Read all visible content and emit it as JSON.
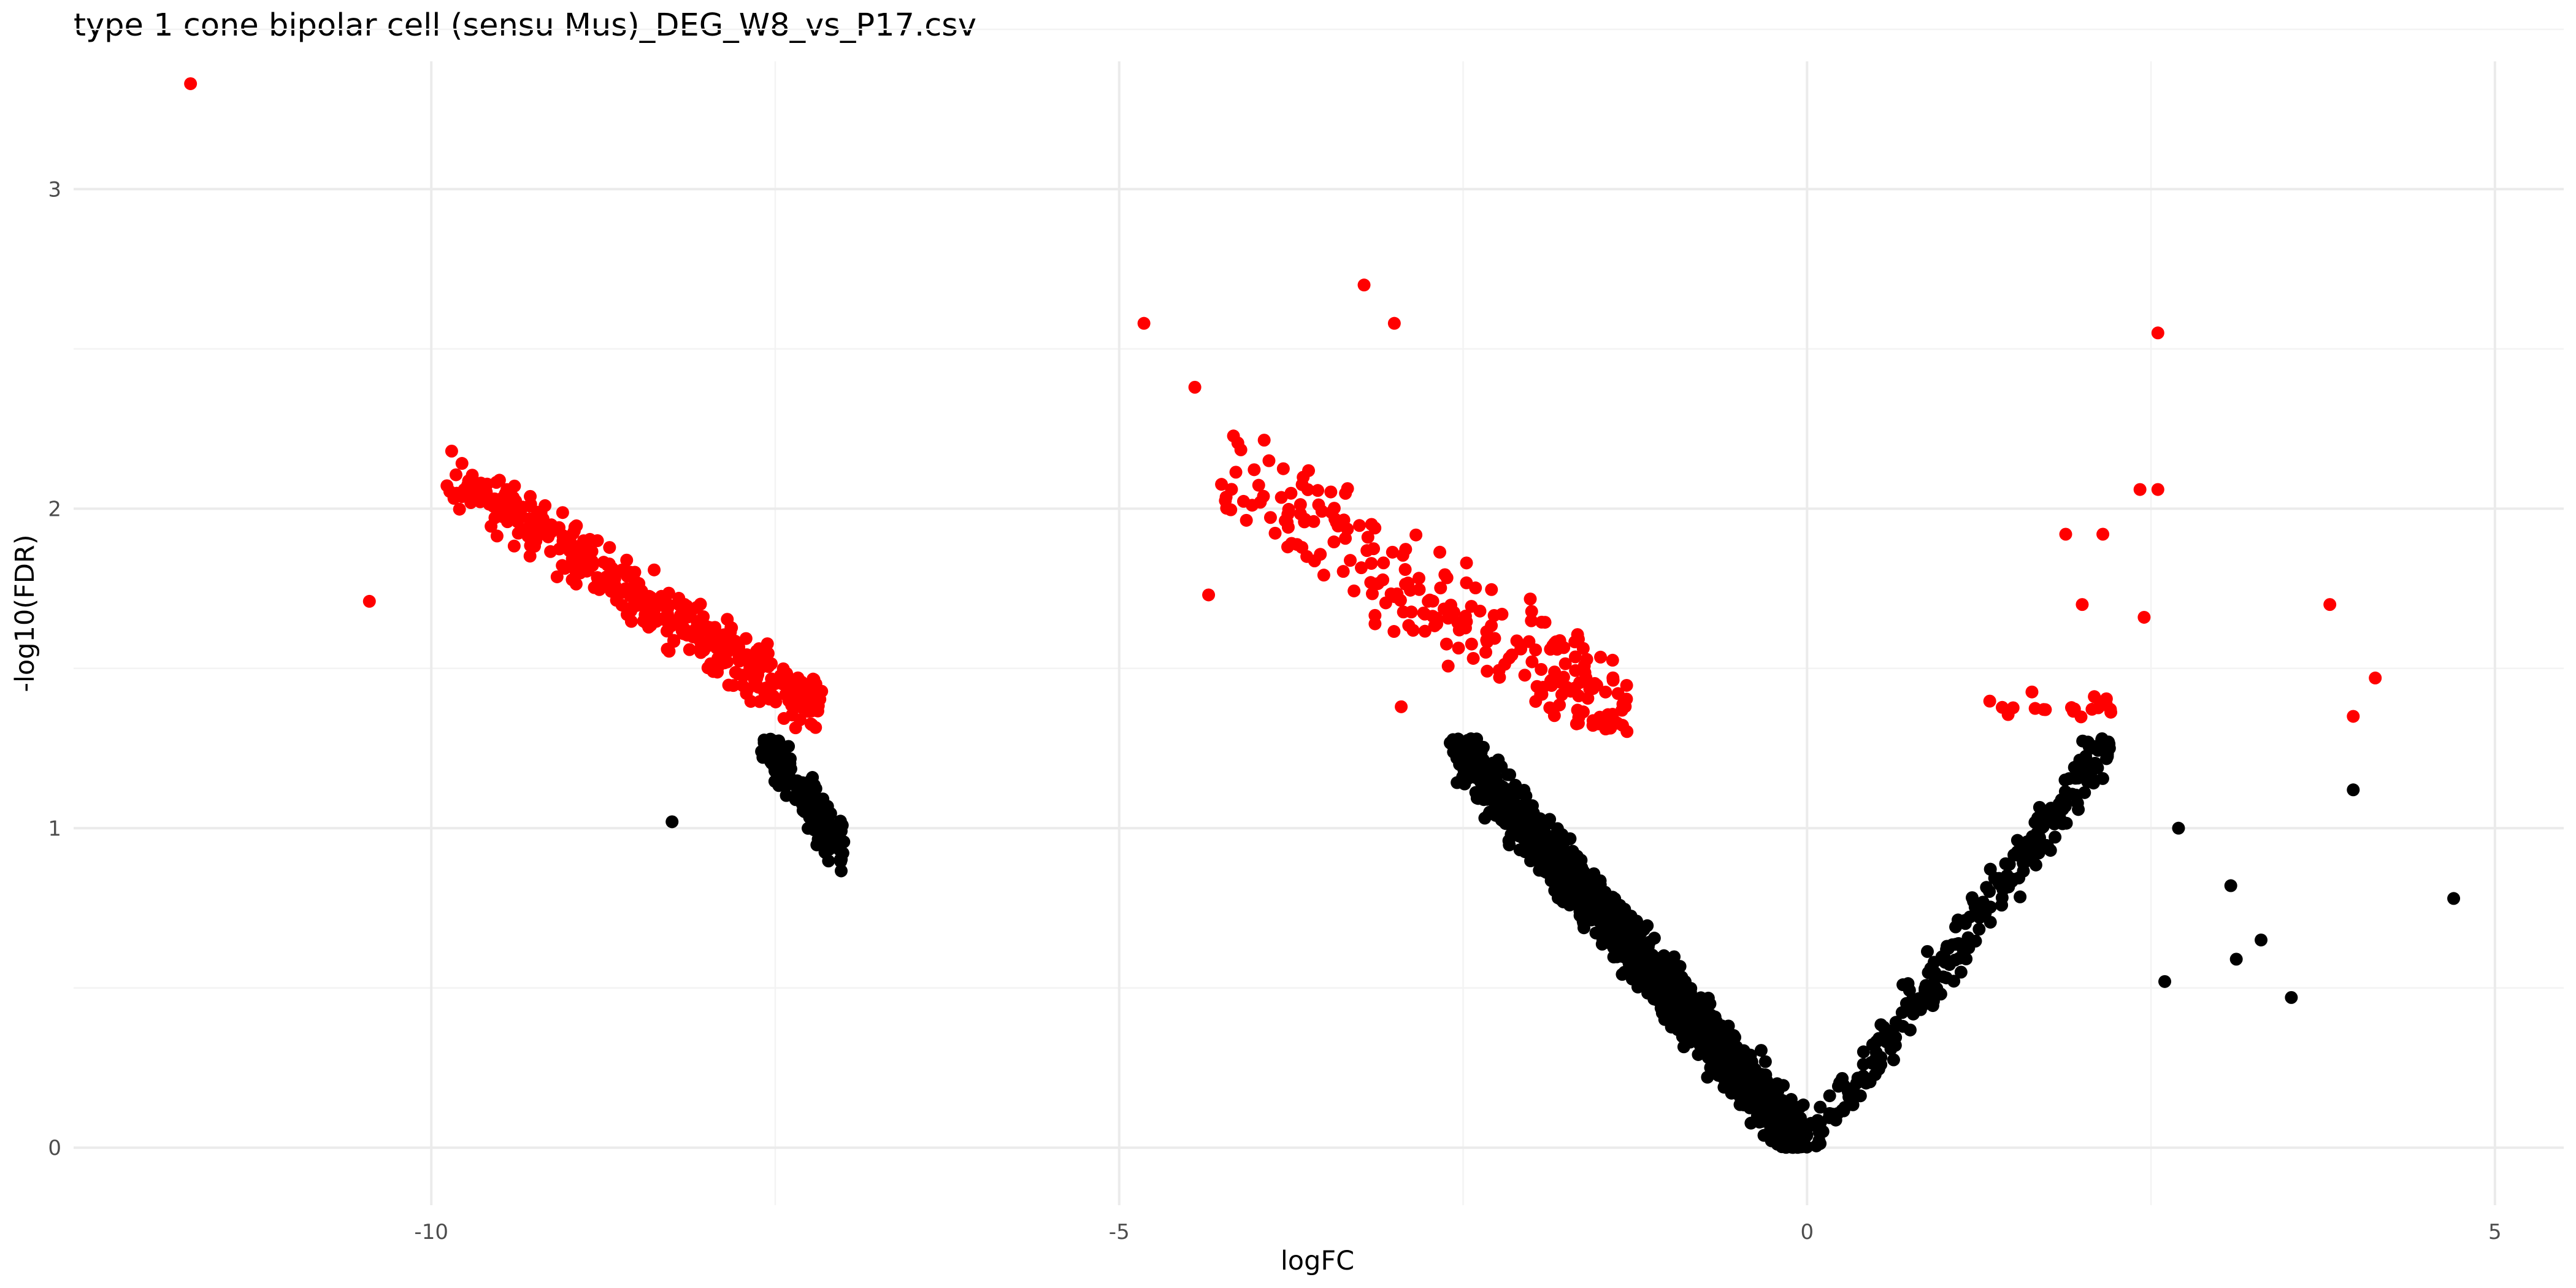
{
  "chart_data": {
    "type": "scatter",
    "title": "type 1 cone bipolar cell (sensu Mus)_DEG_W8_vs_P17.csv",
    "xlabel": "logFC",
    "ylabel": "-log10(FDR)",
    "xlim": [
      -12.6,
      5.5
    ],
    "ylim": [
      -0.18,
      3.4
    ],
    "x_ticks": [
      -10,
      -5,
      0,
      5
    ],
    "y_ticks": [
      0,
      1,
      2,
      3
    ],
    "x_tick_labels": [
      "-10",
      "-5",
      "0",
      "5"
    ],
    "y_tick_labels": [
      "0",
      "1",
      "2",
      "3"
    ],
    "grid": true,
    "legend": "none",
    "colors": {
      "significant": "#ff0000",
      "not_significant": "#000000"
    },
    "significance_threshold_y": 1.3,
    "highlighted_points": [
      {
        "x": -11.75,
        "y": 3.33,
        "group": "significant"
      },
      {
        "x": -10.45,
        "y": 1.71,
        "group": "significant"
      },
      {
        "x": -4.82,
        "y": 2.58,
        "group": "significant"
      },
      {
        "x": -4.45,
        "y": 2.38,
        "group": "significant"
      },
      {
        "x": -4.35,
        "y": 1.73,
        "group": "significant"
      },
      {
        "x": -3.22,
        "y": 2.7,
        "group": "significant"
      },
      {
        "x": -3.0,
        "y": 2.58,
        "group": "significant"
      },
      {
        "x": -2.95,
        "y": 1.38,
        "group": "significant"
      },
      {
        "x": -8.25,
        "y": 1.02,
        "group": "not_significant"
      },
      {
        "x": 2.55,
        "y": 2.55,
        "group": "significant"
      },
      {
        "x": 2.42,
        "y": 2.06,
        "group": "significant"
      },
      {
        "x": 2.55,
        "y": 2.06,
        "group": "significant"
      },
      {
        "x": 2.15,
        "y": 1.92,
        "group": "significant"
      },
      {
        "x": 1.88,
        "y": 1.92,
        "group": "significant"
      },
      {
        "x": 2.0,
        "y": 1.7,
        "group": "significant"
      },
      {
        "x": 2.45,
        "y": 1.66,
        "group": "significant"
      },
      {
        "x": 3.8,
        "y": 1.7,
        "group": "significant"
      },
      {
        "x": 4.13,
        "y": 1.47,
        "group": "significant"
      },
      {
        "x": 3.97,
        "y": 1.35,
        "group": "significant"
      },
      {
        "x": 3.97,
        "y": 1.12,
        "group": "not_significant"
      },
      {
        "x": 4.7,
        "y": 0.78,
        "group": "not_significant"
      },
      {
        "x": 3.52,
        "y": 0.47,
        "group": "not_significant"
      },
      {
        "x": 3.08,
        "y": 0.82,
        "group": "not_significant"
      },
      {
        "x": 3.3,
        "y": 0.65,
        "group": "not_significant"
      },
      {
        "x": 3.12,
        "y": 0.59,
        "group": "not_significant"
      },
      {
        "x": 2.7,
        "y": 1.0,
        "group": "not_significant"
      },
      {
        "x": 2.6,
        "y": 0.52,
        "group": "not_significant"
      }
    ],
    "clusters": [
      {
        "name": "cluster-left-significant",
        "group": "significant",
        "n": 430,
        "x": [
          -9.9,
          -7.15
        ],
        "y_at_x_min": 2.12,
        "y_at_x_max": 1.36,
        "spread": 0.1
      },
      {
        "name": "cluster-left-nonsignificant",
        "group": "not_significant",
        "n": 150,
        "x": [
          -7.6,
          -7.0
        ],
        "y_at_x_min": 1.28,
        "y_at_x_max": 0.93,
        "spread": 0.09
      },
      {
        "name": "cluster-center-significant",
        "group": "significant",
        "n": 240,
        "x": [
          -4.3,
          -1.3
        ],
        "y_at_x_min": 2.1,
        "y_at_x_max": 1.36,
        "spread": 0.2
      },
      {
        "name": "cluster-center-nonsignificant",
        "group": "not_significant",
        "n": 1300,
        "x": [
          -2.6,
          0.0
        ],
        "y_at_x_min": 1.28,
        "y_at_x_max": 0.0,
        "spread": 0.11
      },
      {
        "name": "cluster-right-nonsignificant",
        "group": "not_significant",
        "n": 260,
        "x": [
          0.0,
          2.2
        ],
        "y_at_x_min": 0.0,
        "y_at_x_max": 1.28,
        "spread": 0.1
      },
      {
        "name": "cluster-right-significant",
        "group": "significant",
        "n": 20,
        "x": [
          1.3,
          2.3
        ],
        "y_at_x_min": 1.38,
        "y_at_x_max": 1.4,
        "spread": 0.05
      }
    ]
  }
}
